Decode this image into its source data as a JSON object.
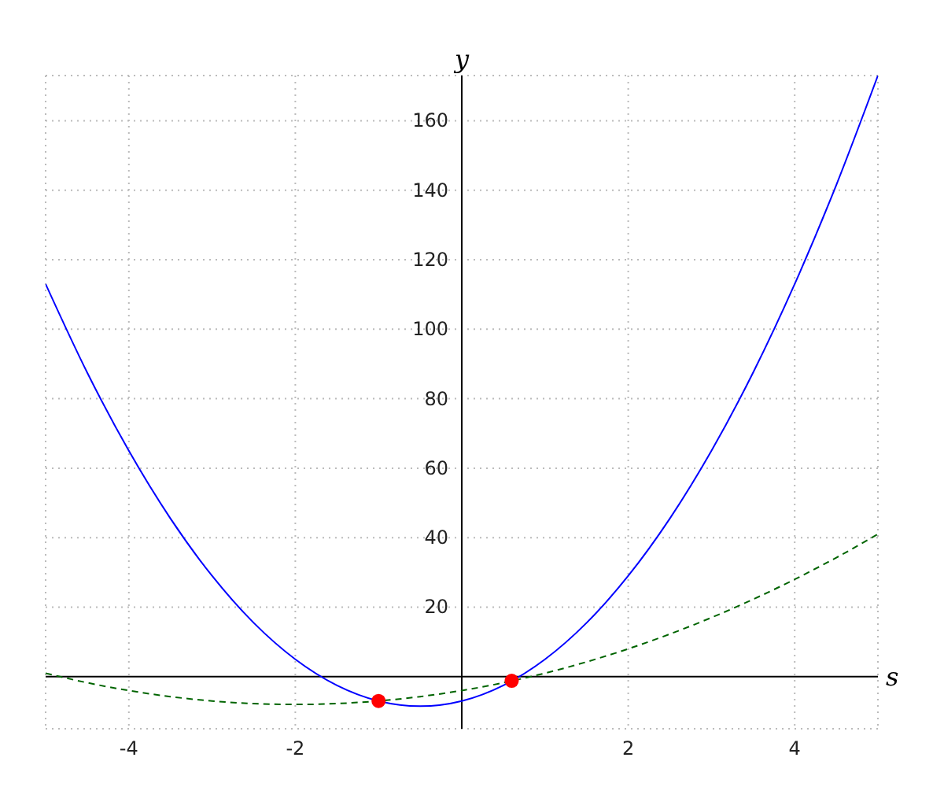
{
  "chart_data": {
    "type": "line",
    "xlabel": "s",
    "ylabel": "y",
    "xlim": [
      -5,
      5
    ],
    "ylim": [
      -15,
      173
    ],
    "xticks": [
      -4,
      -2,
      2,
      4
    ],
    "yticks": [
      20,
      40,
      60,
      80,
      100,
      120,
      140,
      160
    ],
    "grid": true,
    "marker": "none",
    "x": [
      -5,
      -4.5,
      -4,
      -3.5,
      -3,
      -2.5,
      -2,
      -1.5,
      -1,
      -0.5,
      0,
      0.5,
      1,
      1.5,
      2,
      2.5,
      3,
      3.5,
      4,
      4.5,
      5
    ],
    "series": [
      {
        "color": "#0000ff",
        "line_style": "solid",
        "values": [
          113,
          87.5,
          65,
          45.5,
          29,
          15.5,
          5,
          -2.5,
          -7,
          -8.5,
          -7,
          -2.5,
          5,
          15.5,
          29,
          45.5,
          65,
          87.5,
          113,
          141.5,
          173
        ]
      },
      {
        "color": "#006400",
        "line_style": "dashed",
        "values": [
          1,
          -1.75,
          -4,
          -5.75,
          -7,
          -7.75,
          -8,
          -7.75,
          -7,
          -5.75,
          -4,
          -1.75,
          1,
          4.25,
          8,
          12.25,
          17,
          22.25,
          28,
          34.25,
          41
        ]
      },
      {
        "type": "scatter",
        "color": "#ff0000",
        "marker": "circle",
        "x": [
          -1,
          0.6
        ],
        "values": [
          -7,
          -1.2
        ]
      }
    ]
  }
}
